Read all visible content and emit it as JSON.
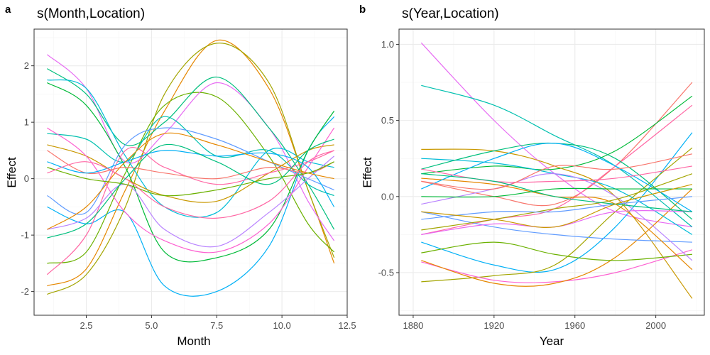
{
  "panels": [
    {
      "letter": "a",
      "title": "s(Month,Location)"
    },
    {
      "letter": "b",
      "title": "s(Year,Location)"
    }
  ],
  "colors": [
    "#F8766D",
    "#E58700",
    "#C99800",
    "#A3A500",
    "#6BB100",
    "#00BA38",
    "#00BF7D",
    "#00C0AF",
    "#00BCD8",
    "#00B0F6",
    "#619CFF",
    "#B983FF",
    "#E76BF3",
    "#FD61D1",
    "#FF67A4"
  ],
  "chart_data": [
    {
      "type": "line",
      "title": "s(Month,Location)",
      "xlabel": "Month",
      "ylabel": "Effect",
      "xlim": [
        0.5,
        12.5
      ],
      "ylim": [
        -2.42,
        2.65
      ],
      "xticks": [
        2.5,
        5.0,
        7.5,
        10.0,
        12.5
      ],
      "xtick_labels": [
        "2.5",
        "5.0",
        "7.5",
        "10.0",
        "12.5"
      ],
      "yticks": [
        -2,
        -1,
        0,
        1,
        2
      ],
      "ytick_labels": [
        "-2",
        "-1",
        "0",
        "1",
        "2"
      ],
      "grid": true,
      "x": [
        1,
        2.5,
        4,
        5.5,
        7.5,
        9.5,
        11,
        12
      ],
      "series": [
        {
          "color": "#00B0F6",
          "values": [
            -0.5,
            -0.8,
            -0.6,
            -1.9,
            -2.0,
            -1.2,
            0.5,
            1.1
          ]
        },
        {
          "color": "#E58700",
          "values": [
            -1.9,
            -1.6,
            -0.2,
            1.2,
            2.45,
            1.6,
            -0.2,
            -1.5
          ]
        },
        {
          "color": "#A3A500",
          "values": [
            -2.05,
            -1.7,
            -0.5,
            1.5,
            2.4,
            1.7,
            -0.2,
            -1.4
          ]
        },
        {
          "color": "#6BB100",
          "values": [
            -1.5,
            -1.3,
            0.1,
            1.3,
            1.45,
            0.4,
            -0.8,
            -1.3
          ]
        },
        {
          "color": "#E76BF3",
          "values": [
            2.2,
            1.6,
            0.3,
            0.8,
            1.7,
            0.9,
            -0.4,
            -1.1
          ]
        },
        {
          "color": "#00BF7D",
          "values": [
            1.95,
            1.5,
            0.6,
            1.0,
            1.8,
            0.9,
            -0.1,
            -0.9
          ]
        },
        {
          "color": "#00BCD8",
          "values": [
            1.75,
            1.6,
            0.4,
            -0.5,
            -0.6,
            0.5,
            0.3,
            0.2
          ]
        },
        {
          "color": "#00BA38",
          "values": [
            1.7,
            1.3,
            0.2,
            -1.3,
            -1.4,
            -0.9,
            0.5,
            1.2
          ]
        },
        {
          "color": "#00C0AF",
          "values": [
            0.8,
            0.7,
            0.3,
            1.1,
            0.4,
            0.5,
            -0.1,
            -0.3
          ]
        },
        {
          "color": "#619CFF",
          "values": [
            -0.3,
            -0.6,
            0.6,
            0.9,
            0.7,
            0.3,
            0.0,
            -0.2
          ]
        },
        {
          "color": "#C99800",
          "values": [
            0.6,
            0.4,
            0.0,
            -0.3,
            -0.4,
            0.1,
            0.5,
            0.6
          ]
        },
        {
          "color": "#FF67A4",
          "values": [
            -1.7,
            -1.0,
            0.5,
            0.2,
            -0.1,
            0.1,
            0.3,
            0.5
          ]
        },
        {
          "color": "#F8766D",
          "values": [
            0.5,
            0.1,
            0.2,
            0.1,
            0.0,
            0.2,
            0.1,
            0.3
          ]
        },
        {
          "color": "#B983FF",
          "values": [
            -0.9,
            -0.7,
            -0.1,
            -0.9,
            -1.2,
            -0.6,
            0.0,
            0.4
          ]
        },
        {
          "color": "#FD61D1",
          "values": [
            0.9,
            0.4,
            -0.6,
            -1.1,
            -1.3,
            -0.8,
            0.2,
            0.9
          ]
        },
        {
          "color": "#00B0F6",
          "values": [
            0.3,
            0.1,
            0.3,
            0.5,
            0.4,
            0.45,
            0.2,
            -0.5
          ]
        },
        {
          "color": "#E58700",
          "values": [
            -0.9,
            -0.5,
            0.3,
            0.8,
            0.6,
            0.3,
            0.1,
            0.0
          ]
        },
        {
          "color": "#6BB100",
          "values": [
            0.2,
            0.0,
            -0.1,
            -0.3,
            -0.2,
            0.0,
            0.1,
            0.3
          ]
        },
        {
          "color": "#FF67A4",
          "values": [
            0.1,
            0.3,
            0.0,
            -0.5,
            -0.7,
            -0.4,
            0.3,
            0.5
          ]
        },
        {
          "color": "#00BF7D",
          "values": [
            -1.05,
            -0.8,
            0.0,
            0.6,
            0.3,
            -0.1,
            0.5,
            0.7
          ]
        }
      ]
    },
    {
      "type": "line",
      "title": "s(Year,Location)",
      "xlabel": "Year",
      "ylabel": "Effect",
      "xlim": [
        1873,
        2024
      ],
      "ylim": [
        -0.78,
        1.1
      ],
      "xticks": [
        1880,
        1920,
        1960,
        2000
      ],
      "xtick_labels": [
        "1880",
        "1920",
        "1960",
        "2000"
      ],
      "yticks": [
        -0.5,
        0.0,
        0.5,
        1.0
      ],
      "ytick_labels": [
        "-0.5",
        "0.0",
        "0.5",
        "1.0"
      ],
      "grid": true,
      "x": [
        1884,
        1920,
        1950,
        1980,
        2018
      ],
      "series": [
        {
          "color": "#E76BF3",
          "values": [
            1.01,
            0.5,
            0.15,
            -0.1,
            -0.2
          ]
        },
        {
          "color": "#00C0AF",
          "values": [
            0.73,
            0.6,
            0.4,
            0.2,
            -0.2
          ]
        },
        {
          "color": "#F8766D",
          "values": [
            0.1,
            0.0,
            -0.05,
            0.2,
            0.75
          ]
        },
        {
          "color": "#00BA38",
          "values": [
            0.15,
            0.2,
            0.18,
            0.3,
            0.66
          ]
        },
        {
          "color": "#FF67A4",
          "values": [
            -0.25,
            -0.15,
            -0.08,
            0.2,
            0.6
          ]
        },
        {
          "color": "#00B0F6",
          "values": [
            -0.3,
            -0.45,
            -0.48,
            -0.2,
            0.42
          ]
        },
        {
          "color": "#C99800",
          "values": [
            0.31,
            0.3,
            0.2,
            0.0,
            -0.67
          ]
        },
        {
          "color": "#A3A500",
          "values": [
            -0.56,
            -0.52,
            -0.45,
            -0.1,
            0.32
          ]
        },
        {
          "color": "#FD61D1",
          "values": [
            -0.43,
            -0.55,
            -0.56,
            -0.5,
            -0.35
          ]
        },
        {
          "color": "#E58700",
          "values": [
            -0.42,
            -0.57,
            -0.57,
            -0.4,
            0.05
          ]
        },
        {
          "color": "#00BCD8",
          "values": [
            0.25,
            0.22,
            0.15,
            0.05,
            -0.25
          ]
        },
        {
          "color": "#6BB100",
          "values": [
            -0.37,
            -0.3,
            -0.38,
            -0.42,
            -0.38
          ]
        },
        {
          "color": "#619CFF",
          "values": [
            -0.1,
            -0.2,
            -0.25,
            -0.28,
            -0.3
          ]
        },
        {
          "color": "#00BF7D",
          "values": [
            0.18,
            0.3,
            0.35,
            0.25,
            -0.15
          ]
        },
        {
          "color": "#B983FF",
          "values": [
            -0.05,
            0.05,
            0.15,
            0.0,
            -0.42
          ]
        },
        {
          "color": "#E58700",
          "values": [
            0.12,
            0.08,
            0.0,
            -0.05,
            -0.48
          ]
        },
        {
          "color": "#00B0F6",
          "values": [
            0.05,
            0.25,
            0.35,
            0.2,
            -0.1
          ]
        },
        {
          "color": "#A3A500",
          "values": [
            -0.22,
            -0.15,
            -0.08,
            -0.02,
            0.15
          ]
        },
        {
          "color": "#FF67A4",
          "values": [
            0.18,
            0.1,
            0.1,
            0.12,
            0.2
          ]
        },
        {
          "color": "#00BA38",
          "values": [
            0.0,
            0.0,
            0.05,
            0.05,
            0.05
          ]
        },
        {
          "color": "#F8766D",
          "values": [
            0.1,
            0.05,
            0.2,
            0.18,
            0.28
          ]
        },
        {
          "color": "#619CFF",
          "values": [
            -0.15,
            -0.1,
            -0.1,
            -0.05,
            0.0
          ]
        },
        {
          "color": "#E76BF3",
          "values": [
            -0.25,
            -0.18,
            -0.2,
            -0.1,
            -0.1
          ]
        },
        {
          "color": "#00BF7D",
          "values": [
            0.15,
            0.1,
            0.0,
            -0.05,
            -0.1
          ]
        },
        {
          "color": "#C99800",
          "values": [
            -0.1,
            -0.15,
            -0.2,
            -0.05,
            0.08
          ]
        }
      ]
    }
  ]
}
